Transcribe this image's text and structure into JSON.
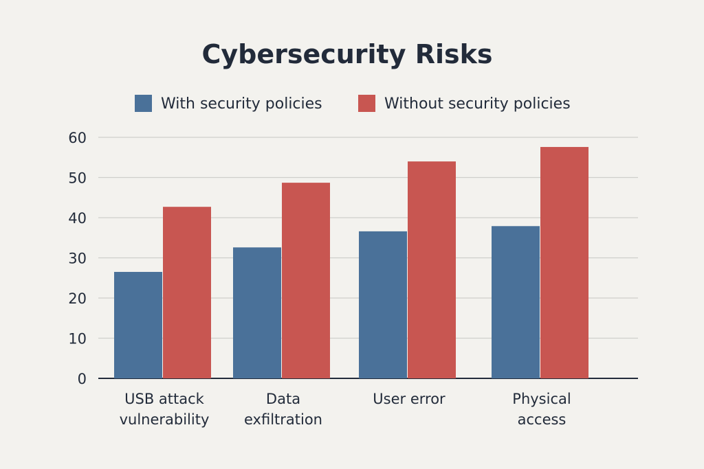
{
  "chart_data": {
    "type": "bar",
    "title": "Cybersecurity Risks",
    "xlabel": "",
    "ylabel": "",
    "categories": [
      [
        "USB attack",
        "vulnerability"
      ],
      [
        "Data",
        "exfiltration"
      ],
      [
        "User error"
      ],
      [
        "Physical",
        "access"
      ]
    ],
    "series": [
      {
        "name": "With security policies",
        "color": "#4a7199",
        "values": [
          26.5,
          32.6,
          36.6,
          37.9
        ]
      },
      {
        "name": "Without security policies",
        "color": "#c85651",
        "values": [
          42.7,
          48.7,
          54.0,
          57.6
        ]
      }
    ],
    "ylim": [
      0,
      60
    ],
    "yticks": [
      0,
      10,
      20,
      30,
      40,
      50,
      60
    ],
    "grid": true,
    "legend": "top-center"
  }
}
